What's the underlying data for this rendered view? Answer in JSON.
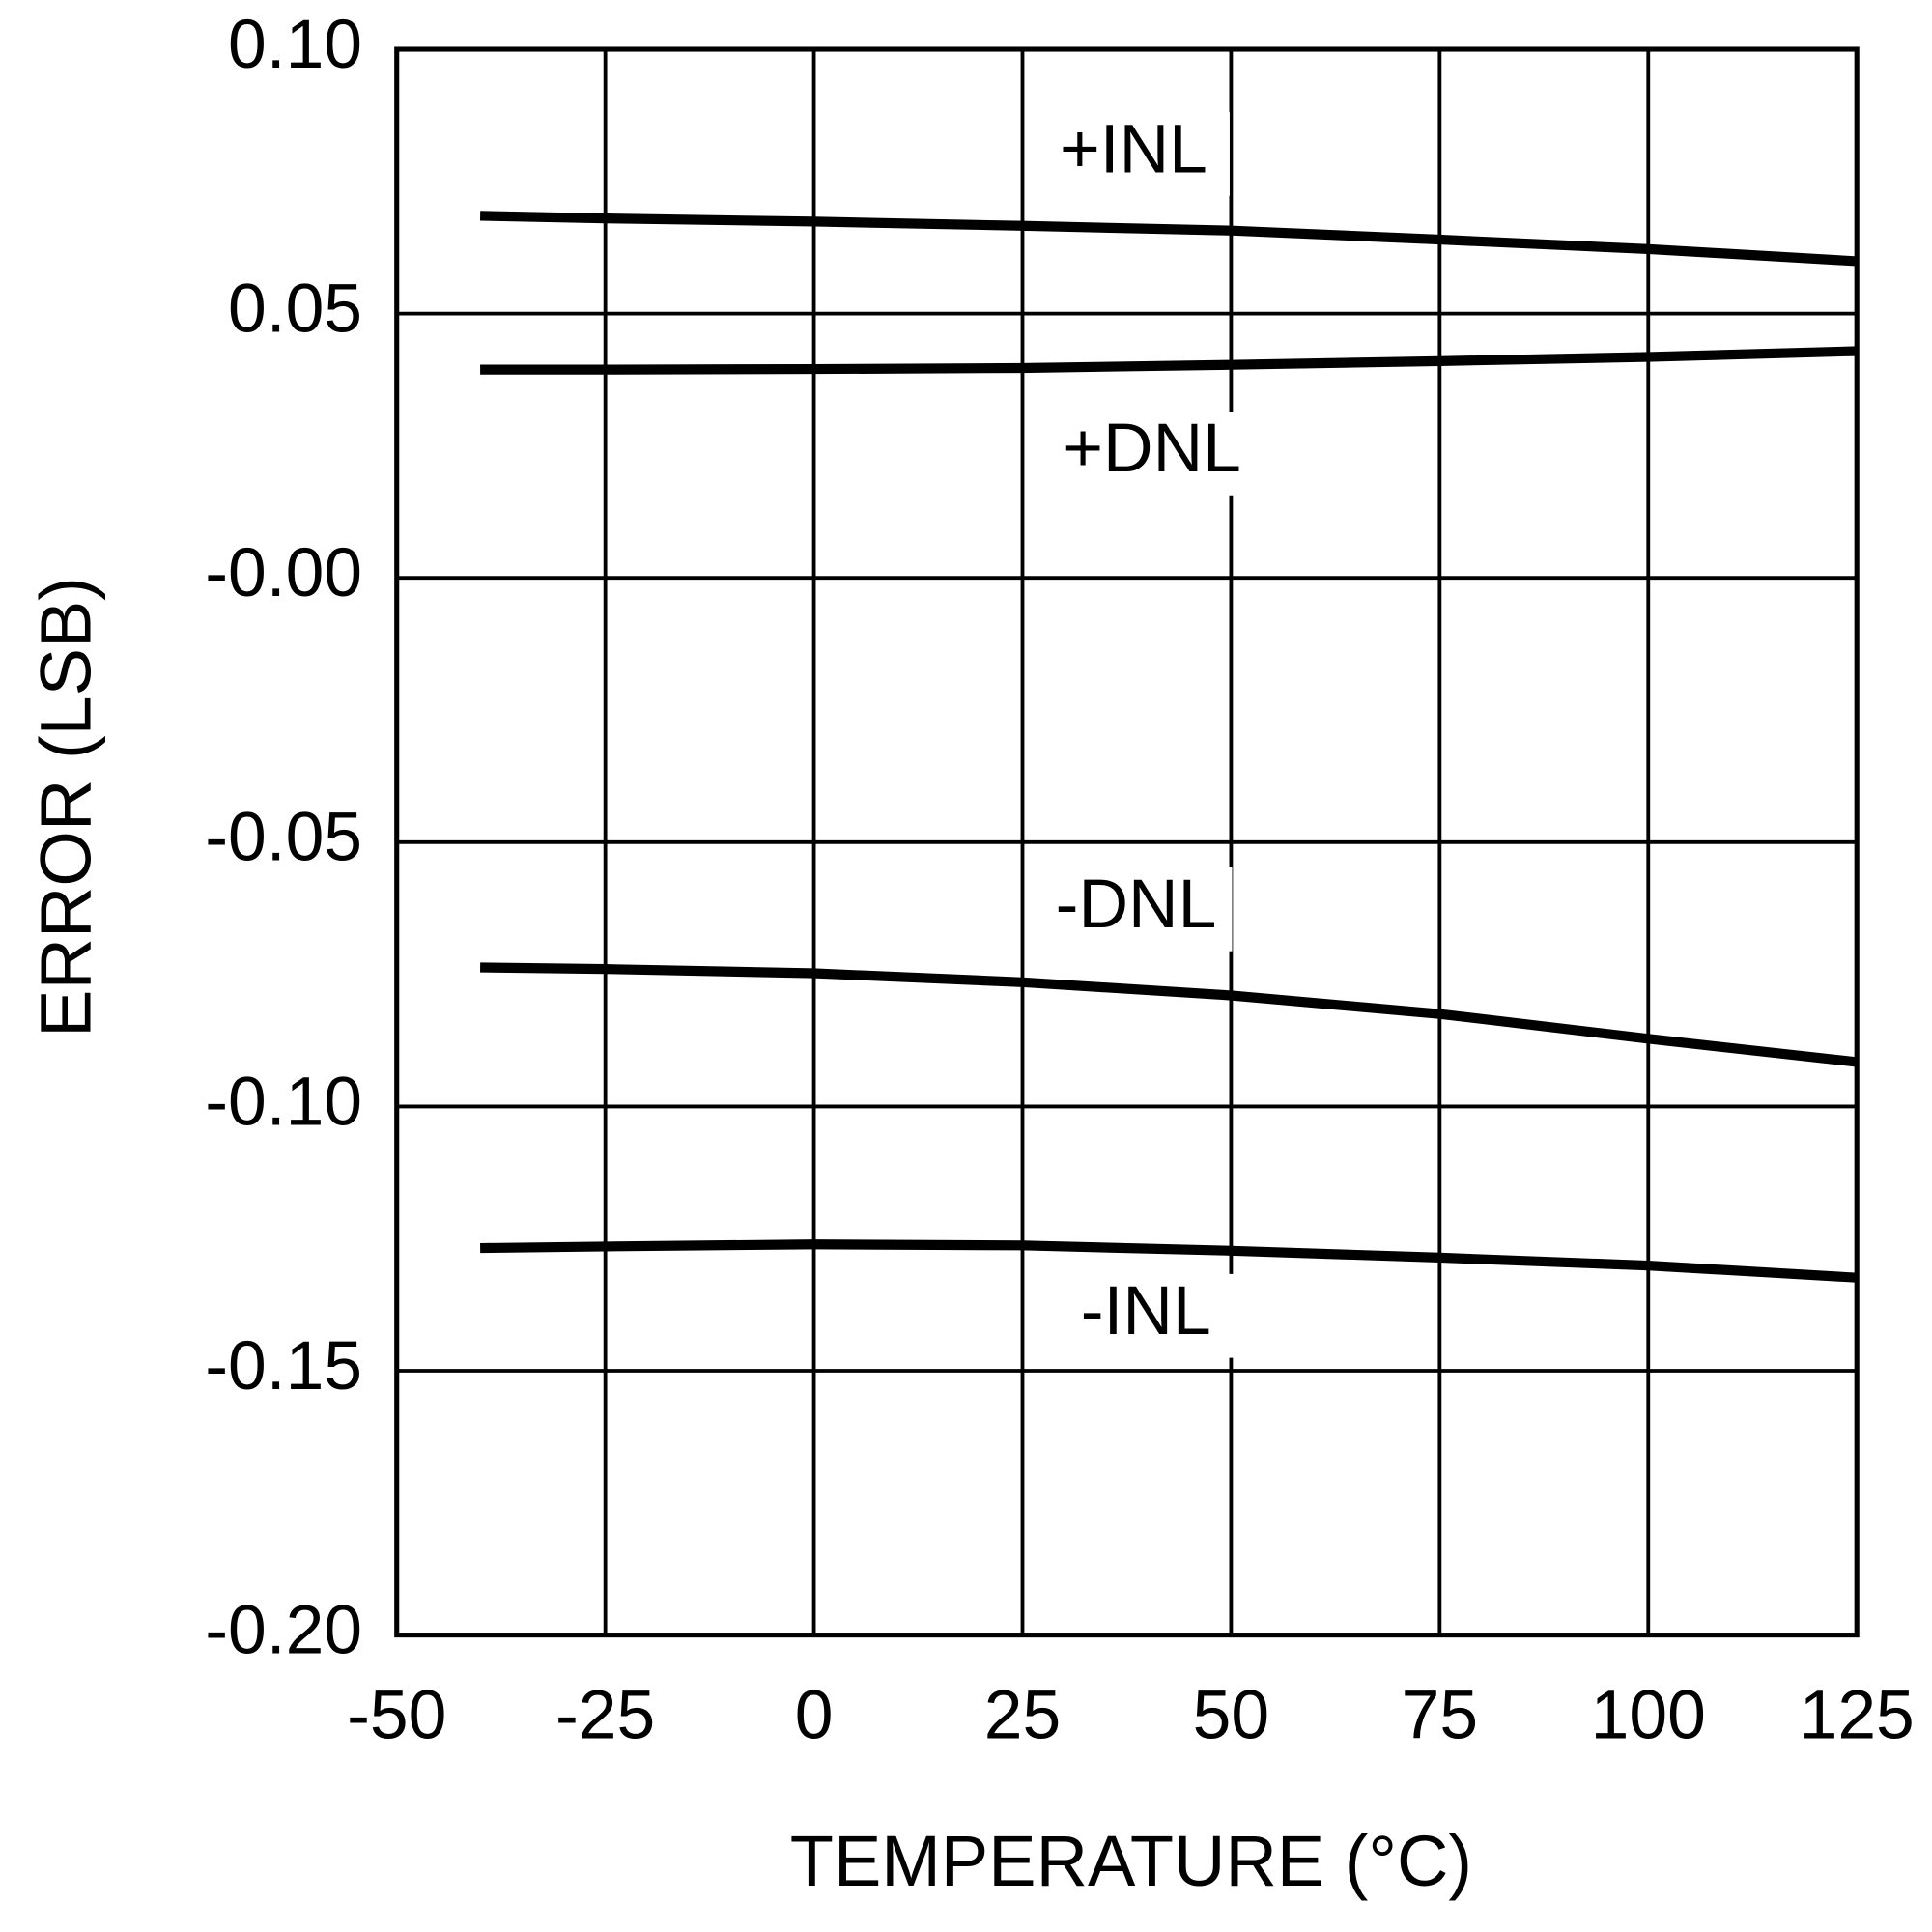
{
  "chart_data": {
    "type": "line",
    "x_label": "TEMPERATURE (°C)",
    "y_label": "ERROR (LSB)",
    "xlim": [
      -50,
      125
    ],
    "xticks": [
      -50,
      -25,
      0,
      25,
      50,
      75,
      100,
      125
    ],
    "ylim": [
      -0.2,
      0.1
    ],
    "yticks": [
      {
        "value": -0.2,
        "label": "-0.20"
      },
      {
        "value": -0.15,
        "label": "-0.15"
      },
      {
        "value": -0.1,
        "label": "-0.10"
      },
      {
        "value": -0.05,
        "label": "-0.05"
      },
      {
        "value": 0,
        "label": "-0.00"
      },
      {
        "value": 0.05,
        "label": "0.05"
      },
      {
        "value": 0.1,
        "label": "0.10"
      }
    ],
    "grid": true,
    "x": [
      -40,
      -25,
      0,
      25,
      50,
      75,
      100,
      125
    ],
    "series": [
      {
        "name": "+INL",
        "color": "#000000",
        "values": [
          0.0685,
          0.068,
          0.0674,
          0.0666,
          0.0657,
          0.064,
          0.0622,
          0.0599
        ]
      },
      {
        "name": "+DNL",
        "color": "#000000",
        "values": [
          0.0394,
          0.0394,
          0.0395,
          0.0397,
          0.0403,
          0.041,
          0.0418,
          0.0429
        ]
      },
      {
        "name": "-DNL",
        "color": "#000000",
        "values": [
          -0.0737,
          -0.074,
          -0.0748,
          -0.0765,
          -0.079,
          -0.0825,
          -0.0872,
          -0.0916
        ]
      },
      {
        "name": "-INL",
        "color": "#000000",
        "values": [
          -0.1268,
          -0.1265,
          -0.1261,
          -0.1263,
          -0.1273,
          -0.1286,
          -0.1301,
          -0.1324
        ]
      }
    ]
  }
}
